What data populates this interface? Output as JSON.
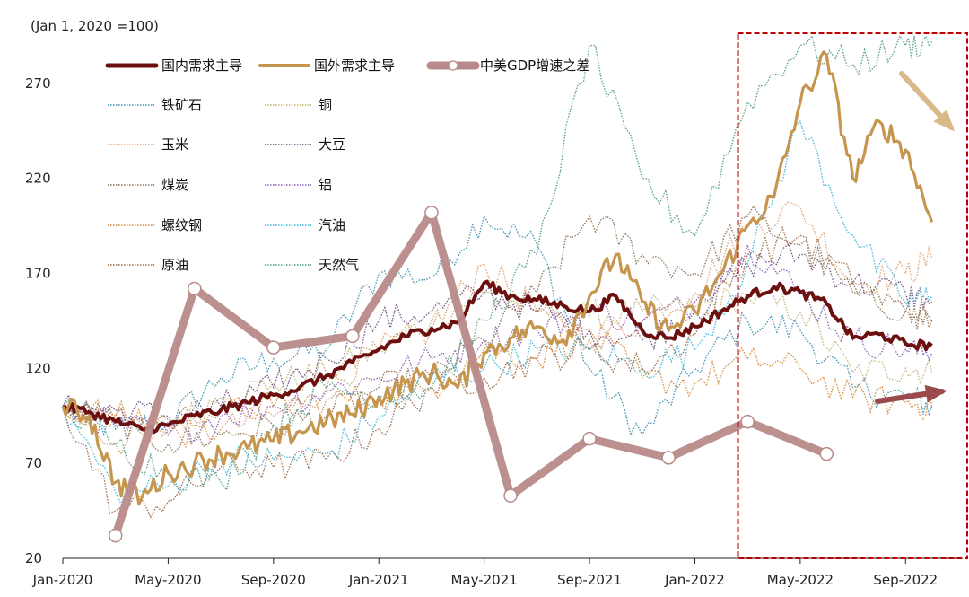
{
  "chart_data": {
    "type": "line",
    "unit_label": "(Jan 1, 2020 =100)",
    "y_ticks": [
      20,
      70,
      120,
      170,
      220,
      270
    ],
    "ylim": [
      20,
      295
    ],
    "x_ticks": [
      "Jan-2020",
      "May-2020",
      "Sep-2020",
      "Jan-2021",
      "May-2021",
      "Sep-2021",
      "Jan-2022",
      "May-2022",
      "Sep-2022"
    ],
    "x_tick_dates": [
      "2020-01",
      "2020-05",
      "2020-09",
      "2021-01",
      "2021-05",
      "2021-09",
      "2022-01",
      "2022-05",
      "2022-09"
    ],
    "xlim": [
      "2020-01",
      "2022-11"
    ],
    "legend": [
      "国内需求主导",
      "国外需求主导",
      "中美GDP增速之差",
      "铁矿石",
      "铜",
      "玉米",
      "大豆",
      "煤炭",
      "铝",
      "螺纹钢",
      "汽油",
      "原油",
      "天然气"
    ],
    "highlight_box": {
      "from": "2022-04",
      "to": "2022-10",
      "style": "dashed-red"
    },
    "series": [
      {
        "name": "国内需求主导",
        "color": "#6b0f0f",
        "style": "bold",
        "x": [
          "2020-01",
          "2020-02",
          "2020-03",
          "2020-04",
          "2020-05",
          "2020-06",
          "2020-07",
          "2020-08",
          "2020-09",
          "2020-10",
          "2020-11",
          "2020-12",
          "2021-01",
          "2021-02",
          "2021-03",
          "2021-04",
          "2021-05",
          "2021-06",
          "2021-07",
          "2021-08",
          "2021-09",
          "2021-10",
          "2021-11",
          "2021-12",
          "2022-01",
          "2022-02",
          "2022-03",
          "2022-04",
          "2022-05",
          "2022-06",
          "2022-07",
          "2022-08",
          "2022-09",
          "2022-10"
        ],
        "values": [
          100,
          97,
          92,
          88,
          90,
          95,
          98,
          102,
          106,
          110,
          116,
          123,
          130,
          137,
          141,
          144,
          165,
          158,
          156,
          153,
          150,
          158,
          140,
          136,
          142,
          150,
          158,
          163,
          160,
          154,
          136,
          138,
          133,
          132
        ]
      },
      {
        "name": "国外需求主导",
        "color": "#c6964e",
        "style": "bold",
        "x": [
          "2020-01",
          "2020-02",
          "2020-03",
          "2020-04",
          "2020-05",
          "2020-06",
          "2020-07",
          "2020-08",
          "2020-09",
          "2020-10",
          "2020-11",
          "2020-12",
          "2021-01",
          "2021-02",
          "2021-03",
          "2021-04",
          "2021-05",
          "2021-06",
          "2021-07",
          "2021-08",
          "2021-09",
          "2021-10",
          "2021-11",
          "2021-12",
          "2022-01",
          "2022-02",
          "2022-03",
          "2022-04",
          "2022-05",
          "2022-06",
          "2022-07",
          "2022-08",
          "2022-09",
          "2022-10"
        ],
        "values": [
          100,
          95,
          60,
          52,
          65,
          70,
          75,
          78,
          82,
          87,
          92,
          96,
          105,
          112,
          118,
          110,
          128,
          136,
          142,
          135,
          158,
          180,
          155,
          140,
          150,
          170,
          195,
          210,
          260,
          285,
          220,
          250,
          235,
          197
        ]
      },
      {
        "name": "中美GDP增速之差",
        "color": "#b98a8a",
        "style": "marker",
        "x": [
          "2020-03",
          "2020-06",
          "2020-09",
          "2020-12",
          "2021-03",
          "2021-06",
          "2021-09",
          "2021-12",
          "2022-03",
          "2022-06"
        ],
        "values": [
          32,
          162,
          131,
          137,
          202,
          53,
          83,
          73,
          92,
          75
        ]
      },
      {
        "name": "铁矿石",
        "color": "#3d8fb0",
        "style": "dotted",
        "x": [
          "2020-01",
          "2020-03",
          "2020-05",
          "2020-07",
          "2020-09",
          "2020-11",
          "2021-01",
          "2021-03",
          "2021-05",
          "2021-07",
          "2021-09",
          "2021-11",
          "2022-01",
          "2022-03",
          "2022-05",
          "2022-07",
          "2022-09",
          "2022-10"
        ],
        "values": [
          100,
          88,
          92,
          115,
          125,
          130,
          170,
          168,
          200,
          185,
          120,
          85,
          120,
          145,
          140,
          110,
          105,
          100
        ]
      },
      {
        "name": "铜",
        "color": "#c2b176",
        "style": "dotted",
        "x": [
          "2020-01",
          "2020-03",
          "2020-05",
          "2020-07",
          "2020-09",
          "2020-11",
          "2021-01",
          "2021-03",
          "2021-05",
          "2021-07",
          "2021-09",
          "2021-11",
          "2022-01",
          "2022-03",
          "2022-05",
          "2022-07",
          "2022-09",
          "2022-10"
        ],
        "values": [
          100,
          80,
          88,
          105,
          112,
          118,
          130,
          145,
          160,
          150,
          148,
          150,
          152,
          158,
          150,
          118,
          120,
          118
        ]
      },
      {
        "name": "玉米",
        "color": "#e0a070",
        "style": "dotted",
        "x": [
          "2020-01",
          "2020-03",
          "2020-05",
          "2020-07",
          "2020-09",
          "2020-11",
          "2021-01",
          "2021-03",
          "2021-05",
          "2021-07",
          "2021-09",
          "2021-11",
          "2022-01",
          "2022-03",
          "2022-05",
          "2022-07",
          "2022-09",
          "2022-10"
        ],
        "values": [
          100,
          95,
          85,
          88,
          95,
          110,
          130,
          140,
          175,
          150,
          135,
          145,
          160,
          195,
          205,
          165,
          170,
          178
        ]
      },
      {
        "name": "大豆",
        "color": "#6b4f7a",
        "style": "dotted",
        "x": [
          "2020-01",
          "2020-03",
          "2020-05",
          "2020-07",
          "2020-09",
          "2020-11",
          "2021-01",
          "2021-03",
          "2021-05",
          "2021-07",
          "2021-09",
          "2021-11",
          "2022-01",
          "2022-03",
          "2022-05",
          "2022-07",
          "2022-09",
          "2022-10"
        ],
        "values": [
          100,
          98,
          95,
          100,
          110,
          125,
          145,
          150,
          160,
          150,
          140,
          135,
          150,
          175,
          180,
          165,
          160,
          155
        ]
      },
      {
        "name": "煤炭",
        "color": "#8b6f52",
        "style": "dotted",
        "x": [
          "2020-01",
          "2020-03",
          "2020-05",
          "2020-07",
          "2020-09",
          "2020-11",
          "2021-01",
          "2021-03",
          "2021-05",
          "2021-07",
          "2021-09",
          "2021-11",
          "2022-01",
          "2022-03",
          "2022-05",
          "2022-07",
          "2022-09",
          "2022-10"
        ],
        "values": [
          100,
          92,
          80,
          85,
          90,
          95,
          110,
          115,
          135,
          160,
          200,
          180,
          170,
          200,
          185,
          160,
          150,
          145
        ]
      },
      {
        "name": "铝",
        "color": "#8a5fb0",
        "style": "dotted",
        "x": [
          "2020-01",
          "2020-03",
          "2020-05",
          "2020-07",
          "2020-09",
          "2020-11",
          "2021-01",
          "2021-03",
          "2021-05",
          "2021-07",
          "2021-09",
          "2021-11",
          "2022-01",
          "2022-03",
          "2022-05",
          "2022-07",
          "2022-09",
          "2022-10"
        ],
        "values": [
          100,
          90,
          85,
          95,
          100,
          108,
          115,
          125,
          135,
          140,
          150,
          145,
          155,
          185,
          160,
          135,
          130,
          128
        ]
      },
      {
        "name": "螺纹钢",
        "color": "#d4883a",
        "style": "dotted",
        "x": [
          "2020-01",
          "2020-03",
          "2020-05",
          "2020-07",
          "2020-09",
          "2020-11",
          "2021-01",
          "2021-03",
          "2021-05",
          "2021-07",
          "2021-09",
          "2021-11",
          "2022-01",
          "2022-03",
          "2022-05",
          "2022-07",
          "2022-09",
          "2022-10"
        ],
        "values": [
          100,
          95,
          93,
          97,
          100,
          103,
          105,
          110,
          130,
          125,
          140,
          115,
          112,
          125,
          120,
          105,
          102,
          100
        ]
      },
      {
        "name": "汽油",
        "color": "#3fb5d6",
        "style": "dotted",
        "x": [
          "2020-01",
          "2020-03",
          "2020-05",
          "2020-07",
          "2020-09",
          "2020-11",
          "2021-01",
          "2021-03",
          "2021-05",
          "2021-07",
          "2021-09",
          "2021-11",
          "2022-01",
          "2022-03",
          "2022-05",
          "2022-07",
          "2022-09",
          "2022-10"
        ],
        "values": [
          100,
          55,
          58,
          72,
          72,
          75,
          95,
          115,
          120,
          130,
          130,
          120,
          130,
          175,
          250,
          190,
          155,
          158
        ]
      },
      {
        "name": "原油",
        "color": "#9a6a45",
        "style": "dotted",
        "x": [
          "2020-01",
          "2020-03",
          "2020-05",
          "2020-07",
          "2020-09",
          "2020-11",
          "2021-01",
          "2021-03",
          "2021-05",
          "2021-07",
          "2021-09",
          "2021-11",
          "2022-01",
          "2022-03",
          "2022-05",
          "2022-07",
          "2022-09",
          "2022-10"
        ],
        "values": [
          100,
          45,
          50,
          68,
          68,
          72,
          88,
          110,
          115,
          125,
          130,
          120,
          138,
          180,
          190,
          165,
          150,
          145
        ]
      },
      {
        "name": "天然气",
        "color": "#4e9a86",
        "style": "dotted",
        "x": [
          "2020-01",
          "2020-03",
          "2020-05",
          "2020-07",
          "2020-09",
          "2020-11",
          "2021-01",
          "2021-03",
          "2021-05",
          "2021-07",
          "2021-09",
          "2021-11",
          "2022-01",
          "2022-03",
          "2022-05",
          "2022-07",
          "2022-09",
          "2022-10"
        ],
        "values": [
          100,
          80,
          65,
          60,
          90,
          110,
          105,
          110,
          145,
          180,
          290,
          220,
          190,
          260,
          290,
          280,
          290,
          292
        ]
      }
    ]
  }
}
